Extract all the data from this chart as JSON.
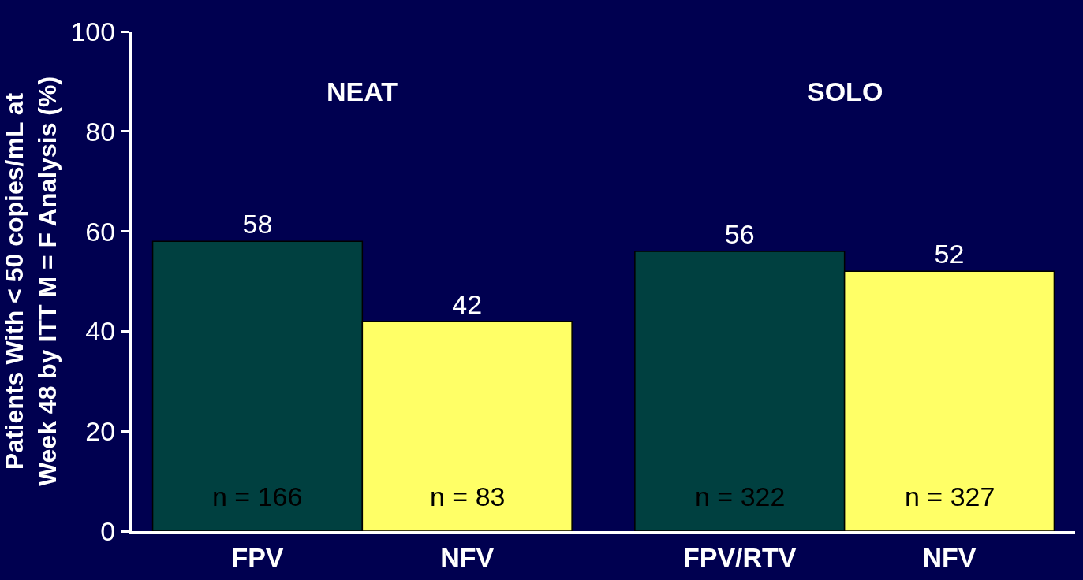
{
  "chart_data": {
    "type": "bar",
    "ylabel": "Patients With < 50 copies/mL at\nWeek 48 by ITT M = F Analysis (%)",
    "categories": [
      "FPV",
      "NFV",
      "FPV/RTV",
      "NFV"
    ],
    "values": [
      58,
      42,
      56,
      52
    ],
    "colors": [
      "#004040",
      "#ffff66",
      "#004040",
      "#ffff66"
    ],
    "data_labels": true,
    "ylim": [
      0,
      100
    ],
    "yticks": [
      0,
      20,
      40,
      60,
      80,
      100
    ],
    "grid": false,
    "legend": false,
    "annotations": [
      "NEAT",
      "SOLO",
      "n = 166",
      "n = 83",
      "n = 322",
      "n = 327"
    ]
  }
}
